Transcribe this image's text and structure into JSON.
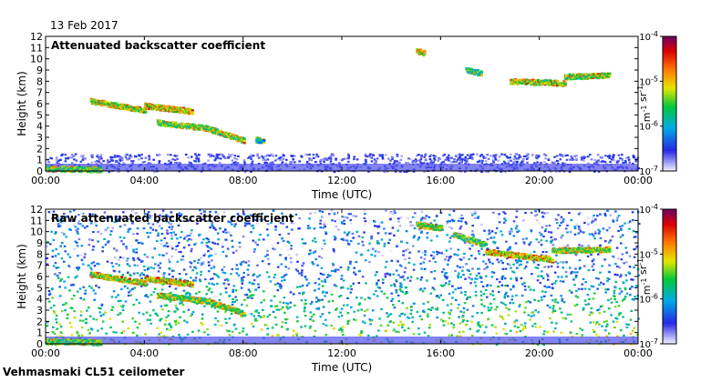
{
  "date_label": "13 Feb 2017",
  "footer_label": "Vehmasmaki CL51 ceilometer",
  "colors": {
    "border": "#000000",
    "background": "#ffffff"
  },
  "chart_data": [
    {
      "type": "heatmap",
      "title": "Attenuated backscatter coefficient",
      "xlabel": "Time (UTC)",
      "ylabel": "Height (km)",
      "xlim": [
        0,
        24
      ],
      "ylim": [
        0,
        12
      ],
      "xticks": [
        "00:00",
        "04:00",
        "08:00",
        "12:00",
        "16:00",
        "20:00",
        "00:00"
      ],
      "yticks": [
        "0",
        "1",
        "2",
        "3",
        "4",
        "5",
        "6",
        "7",
        "8",
        "9",
        "10",
        "11",
        "12"
      ],
      "colorbar": {
        "ticks": [
          "10-7",
          "10-6",
          "10-5",
          "10-4"
        ],
        "units": "m-1 sr-1",
        "range_log10": [
          -7,
          -4
        ]
      },
      "noise": {
        "level_km": 0.15,
        "speckle_top_km": 1.6,
        "density": 0.4
      },
      "layers": [
        {
          "t0": 0.0,
          "t1": 2.2,
          "h0": 0.2,
          "h1": 0.1,
          "intensity": 0.75
        },
        {
          "t0": 1.8,
          "t1": 4.0,
          "h0": 6.2,
          "h1": 5.4,
          "intensity": 0.85
        },
        {
          "t0": 4.0,
          "t1": 5.9,
          "h0": 5.8,
          "h1": 5.3,
          "intensity": 0.9
        },
        {
          "t0": 4.5,
          "t1": 6.5,
          "h0": 4.3,
          "h1": 3.8,
          "intensity": 0.8
        },
        {
          "t0": 6.5,
          "t1": 8.0,
          "h0": 3.8,
          "h1": 2.7,
          "intensity": 0.8
        },
        {
          "t0": 8.5,
          "t1": 8.8,
          "h0": 2.8,
          "h1": 2.6,
          "intensity": 0.6
        },
        {
          "t0": 15.0,
          "t1": 15.3,
          "h0": 10.7,
          "h1": 10.5,
          "intensity": 0.9
        },
        {
          "t0": 17.0,
          "t1": 17.6,
          "h0": 9.0,
          "h1": 8.7,
          "intensity": 0.7
        },
        {
          "t0": 18.8,
          "t1": 21.0,
          "h0": 8.0,
          "h1": 7.8,
          "intensity": 0.85
        },
        {
          "t0": 21.0,
          "t1": 22.8,
          "h0": 8.4,
          "h1": 8.5,
          "intensity": 0.8
        }
      ]
    },
    {
      "type": "heatmap",
      "title": "Raw attenuated backscatter coefficient",
      "xlabel": "Time (UTC)",
      "ylabel": "Height (km)",
      "xlim": [
        0,
        24
      ],
      "ylim": [
        0,
        12
      ],
      "xticks": [
        "00:00",
        "04:00",
        "08:00",
        "12:00",
        "16:00",
        "20:00",
        "00:00"
      ],
      "yticks": [
        "0",
        "1",
        "2",
        "3",
        "4",
        "5",
        "6",
        "7",
        "8",
        "9",
        "10",
        "11",
        "12"
      ],
      "colorbar": {
        "ticks": [
          "10-7",
          "10-6",
          "10-5",
          "10-4"
        ],
        "units": "m-1 sr-1",
        "range_log10": [
          -7,
          -4
        ]
      },
      "noise": {
        "level_km": 0.15,
        "speckle_top_km": 12,
        "density": 1.0
      },
      "layers": [
        {
          "t0": 0.0,
          "t1": 2.2,
          "h0": 0.2,
          "h1": 0.1,
          "intensity": 0.75
        },
        {
          "t0": 1.8,
          "t1": 4.0,
          "h0": 6.2,
          "h1": 5.4,
          "intensity": 0.85
        },
        {
          "t0": 4.0,
          "t1": 5.9,
          "h0": 5.8,
          "h1": 5.3,
          "intensity": 0.9
        },
        {
          "t0": 4.5,
          "t1": 6.5,
          "h0": 4.3,
          "h1": 3.8,
          "intensity": 0.8
        },
        {
          "t0": 6.5,
          "t1": 8.0,
          "h0": 3.8,
          "h1": 2.7,
          "intensity": 0.8
        },
        {
          "t0": 15.0,
          "t1": 16.0,
          "h0": 10.6,
          "h1": 10.3,
          "intensity": 0.8
        },
        {
          "t0": 16.5,
          "t1": 17.8,
          "h0": 9.7,
          "h1": 8.8,
          "intensity": 0.75
        },
        {
          "t0": 17.8,
          "t1": 20.5,
          "h0": 8.2,
          "h1": 7.5,
          "intensity": 0.9
        },
        {
          "t0": 20.5,
          "t1": 22.8,
          "h0": 8.3,
          "h1": 8.4,
          "intensity": 0.8
        }
      ]
    }
  ]
}
